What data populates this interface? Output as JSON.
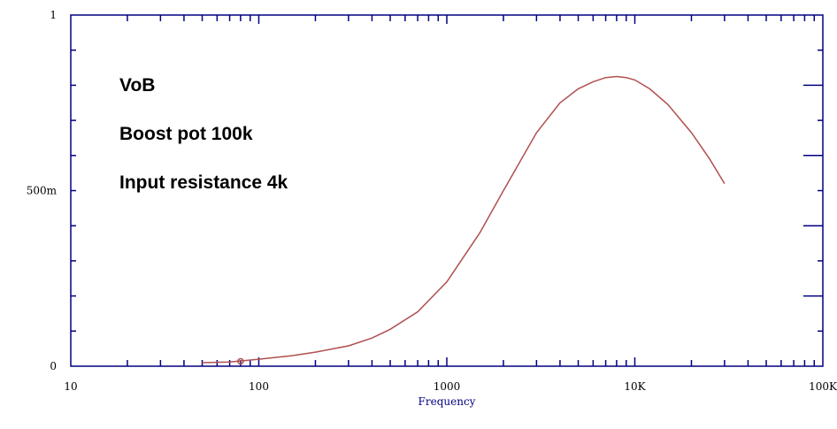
{
  "chart_data": {
    "type": "line",
    "title": "",
    "xlabel": "Frequency",
    "ylabel": "",
    "xscale": "log",
    "xlim": [
      10,
      100000
    ],
    "ylim": [
      0,
      1
    ],
    "grid": false,
    "x_tick_labels": [
      {
        "value": 10,
        "label": "10"
      },
      {
        "value": 100,
        "label": "100"
      },
      {
        "value": 1000,
        "label": "1000"
      },
      {
        "value": 10000,
        "label": "10K"
      },
      {
        "value": 100000,
        "label": "100K"
      }
    ],
    "y_tick_labels": [
      {
        "value": 0,
        "label": "0"
      },
      {
        "value": 0.5,
        "label": "500m"
      },
      {
        "value": 1,
        "label": "1"
      }
    ],
    "annotations": [
      "VoB",
      "Boost pot 100k",
      "Input resistance 4k"
    ],
    "series": [
      {
        "color": "#b05050",
        "x": [
          50,
          70,
          100,
          150,
          200,
          300,
          400,
          500,
          700,
          1000,
          1500,
          2000,
          3000,
          4000,
          5000,
          6000,
          7000,
          8000,
          9000,
          10000,
          12000,
          15000,
          20000,
          25000,
          30000
        ],
        "y": [
          0.01,
          0.012,
          0.02,
          0.03,
          0.04,
          0.058,
          0.08,
          0.105,
          0.155,
          0.24,
          0.38,
          0.5,
          0.665,
          0.75,
          0.79,
          0.81,
          0.822,
          0.825,
          0.822,
          0.815,
          0.79,
          0.745,
          0.665,
          0.59,
          0.52
        ]
      }
    ],
    "markers": [
      {
        "x": 80,
        "y": 0.014,
        "color": "#b05050"
      }
    ]
  },
  "colors": {
    "axis": "#000080",
    "text": "#000000"
  }
}
